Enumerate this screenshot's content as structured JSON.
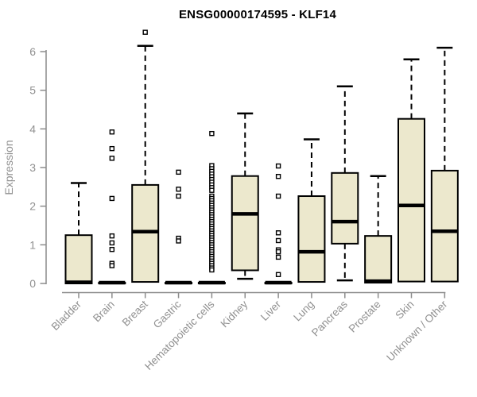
{
  "figure": {
    "background": "#ffffff"
  },
  "colors": {
    "box_fill": "#ECE8CD",
    "box_stroke": "#000000",
    "median": "#000000",
    "whisker": "#000000",
    "outlier_fill": "#ffffff",
    "outlier_stroke": "#000000",
    "axis": "#8C8C8C",
    "tick_label": "#909090",
    "title": "#000000"
  },
  "chart_data": {
    "type": "boxplot",
    "title": "ENSG00000174595 - KLF14",
    "xlabel": "",
    "ylabel": "Expression",
    "ylim": [
      0,
      6.6
    ],
    "yticks": [
      0,
      1,
      2,
      3,
      4,
      5,
      6
    ],
    "grid": false,
    "categories": [
      "Bladder",
      "Brain",
      "Breast",
      "Gastric",
      "Hematopoietic cells",
      "Kidney",
      "Liver",
      "Lung",
      "Pancreas",
      "Prostate",
      "Skin",
      "Unknown / Other"
    ],
    "boxes": [
      {
        "category": "Bladder",
        "lo": 0,
        "q1": 0,
        "median": 0.03,
        "q3": 1.25,
        "hi": 2.6,
        "outliers": []
      },
      {
        "category": "Brain",
        "lo": 0,
        "q1": 0,
        "median": 0.02,
        "q3": 0.02,
        "hi": 0.02,
        "outliers": [
          3.92,
          3.49,
          3.24,
          2.2,
          1.23,
          1.05,
          0.88,
          0.52,
          0.46
        ]
      },
      {
        "category": "Breast",
        "lo": 0,
        "q1": 0.04,
        "median": 1.34,
        "q3": 2.55,
        "hi": 6.15,
        "outliers": [
          6.5
        ]
      },
      {
        "category": "Gastric",
        "lo": 0,
        "q1": 0,
        "median": 0.02,
        "q3": 0.02,
        "hi": 0.02,
        "outliers": [
          2.88,
          2.44,
          2.26,
          1.17,
          1.1
        ]
      },
      {
        "category": "Hematopoietic cells",
        "lo": 0,
        "q1": 0,
        "median": 0.02,
        "q3": 0.02,
        "hi": 0.02,
        "outliers": [
          3.88,
          3.05,
          2.97,
          2.9,
          2.83,
          2.76,
          2.69,
          2.62,
          2.55,
          2.48,
          2.41,
          2.26,
          2.2,
          2.14,
          2.08,
          2.02,
          1.96,
          1.9,
          1.84,
          1.78,
          1.72,
          1.66,
          1.6,
          1.54,
          1.48,
          1.42,
          1.36,
          1.3,
          1.24,
          1.18,
          1.12,
          1.06,
          1.0,
          0.94,
          0.88,
          0.82,
          0.76,
          0.7,
          0.64,
          0.58,
          0.52,
          0.46,
          0.4,
          0.35
        ]
      },
      {
        "category": "Kidney",
        "lo": 0.12,
        "q1": 0.34,
        "median": 1.8,
        "q3": 2.78,
        "hi": 4.4,
        "outliers": []
      },
      {
        "category": "Liver",
        "lo": 0,
        "q1": 0,
        "median": 0.02,
        "q3": 0.02,
        "hi": 0.02,
        "outliers": [
          3.04,
          2.77,
          2.26,
          1.31,
          1.11,
          0.87,
          0.82,
          0.68,
          0.23
        ]
      },
      {
        "category": "Lung",
        "lo": 0,
        "q1": 0.04,
        "median": 0.82,
        "q3": 2.26,
        "hi": 3.73,
        "outliers": []
      },
      {
        "category": "Pancreas",
        "lo": 0.08,
        "q1": 1.03,
        "median": 1.6,
        "q3": 2.86,
        "hi": 5.1,
        "outliers": []
      },
      {
        "category": "Prostate",
        "lo": 0,
        "q1": 0.02,
        "median": 0.06,
        "q3": 1.23,
        "hi": 2.78,
        "outliers": []
      },
      {
        "category": "Skin",
        "lo": 0,
        "q1": 0.05,
        "median": 2.02,
        "q3": 4.26,
        "hi": 5.8,
        "outliers": []
      },
      {
        "category": "Unknown / Other",
        "lo": 0,
        "q1": 0.05,
        "median": 1.35,
        "q3": 2.92,
        "hi": 6.1,
        "outliers": []
      }
    ]
  }
}
